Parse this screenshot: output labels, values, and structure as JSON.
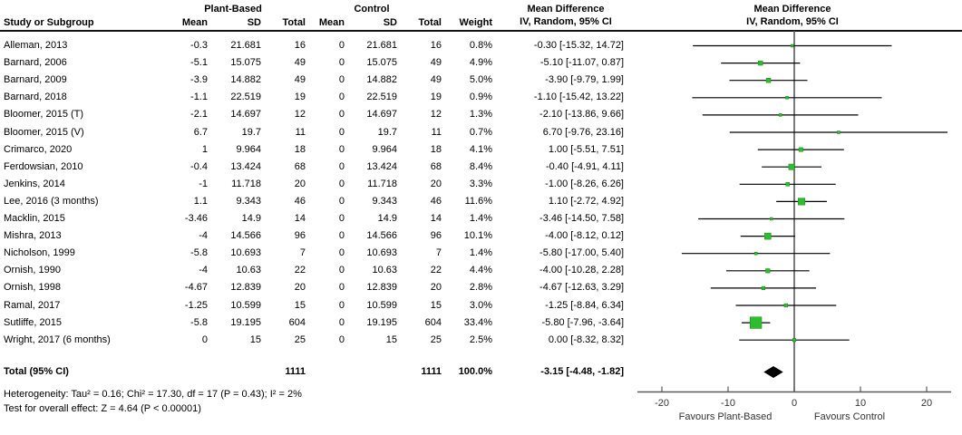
{
  "header": {
    "group1": "Plant-Based",
    "group2": "Control",
    "col_study": "Study or Subgroup",
    "col_mean": "Mean",
    "col_sd": "SD",
    "col_total": "Total",
    "col_weight": "Weight",
    "md_title": "Mean Difference",
    "md_subtitle": "IV, Random, 95% CI"
  },
  "colors": {
    "marker_green": "#2cbe2c",
    "marker_border": "#168a16",
    "ci_line": "#000000",
    "axis_gray": "#595959",
    "diamond": "#000000"
  },
  "chart_data": {
    "type": "forest",
    "title": "Mean Difference, IV, Random, 95% CI",
    "studies": [
      {
        "study": "Alleman, 2013",
        "pb_mean": "-0.3",
        "pb_sd": "21.681",
        "pb_total": "16",
        "c_mean": "0",
        "c_sd": "21.681",
        "c_total": "16",
        "weight": "0.8%",
        "md_label": "-0.30 [-15.32, 14.72]",
        "md": -0.3,
        "ci_low": -15.32,
        "ci_high": 14.72,
        "weight_pct": 0.8
      },
      {
        "study": "Barnard, 2006",
        "pb_mean": "-5.1",
        "pb_sd": "15.075",
        "pb_total": "49",
        "c_mean": "0",
        "c_sd": "15.075",
        "c_total": "49",
        "weight": "4.9%",
        "md_label": "-5.10 [-11.07, 0.87]",
        "md": -5.1,
        "ci_low": -11.07,
        "ci_high": 0.87,
        "weight_pct": 4.9
      },
      {
        "study": "Barnard, 2009",
        "pb_mean": "-3.9",
        "pb_sd": "14.882",
        "pb_total": "49",
        "c_mean": "0",
        "c_sd": "14.882",
        "c_total": "49",
        "weight": "5.0%",
        "md_label": "-3.90 [-9.79, 1.99]",
        "md": -3.9,
        "ci_low": -9.79,
        "ci_high": 1.99,
        "weight_pct": 5.0
      },
      {
        "study": "Barnard, 2018",
        "pb_mean": "-1.1",
        "pb_sd": "22.519",
        "pb_total": "19",
        "c_mean": "0",
        "c_sd": "22.519",
        "c_total": "19",
        "weight": "0.9%",
        "md_label": "-1.10 [-15.42, 13.22]",
        "md": -1.1,
        "ci_low": -15.42,
        "ci_high": 13.22,
        "weight_pct": 0.9
      },
      {
        "study": "Bloomer, 2015 (T)",
        "pb_mean": "-2.1",
        "pb_sd": "14.697",
        "pb_total": "12",
        "c_mean": "0",
        "c_sd": "14.697",
        "c_total": "12",
        "weight": "1.3%",
        "md_label": "-2.10 [-13.86, 9.66]",
        "md": -2.1,
        "ci_low": -13.86,
        "ci_high": 9.66,
        "weight_pct": 1.3
      },
      {
        "study": "Bloomer, 2015 (V)",
        "pb_mean": "6.7",
        "pb_sd": "19.7",
        "pb_total": "11",
        "c_mean": "0",
        "c_sd": "19.7",
        "c_total": "11",
        "weight": "0.7%",
        "md_label": "6.70 [-9.76, 23.16]",
        "md": 6.7,
        "ci_low": -9.76,
        "ci_high": 23.16,
        "weight_pct": 0.7
      },
      {
        "study": "Crimarco, 2020",
        "pb_mean": "1",
        "pb_sd": "9.964",
        "pb_total": "18",
        "c_mean": "0",
        "c_sd": "9.964",
        "c_total": "18",
        "weight": "4.1%",
        "md_label": "1.00 [-5.51, 7.51]",
        "md": 1.0,
        "ci_low": -5.51,
        "ci_high": 7.51,
        "weight_pct": 4.1
      },
      {
        "study": "Ferdowsian, 2010",
        "pb_mean": "-0.4",
        "pb_sd": "13.424",
        "pb_total": "68",
        "c_mean": "0",
        "c_sd": "13.424",
        "c_total": "68",
        "weight": "8.4%",
        "md_label": "-0.40 [-4.91, 4.11]",
        "md": -0.4,
        "ci_low": -4.91,
        "ci_high": 4.11,
        "weight_pct": 8.4
      },
      {
        "study": "Jenkins, 2014",
        "pb_mean": "-1",
        "pb_sd": "11.718",
        "pb_total": "20",
        "c_mean": "0",
        "c_sd": "11.718",
        "c_total": "20",
        "weight": "3.3%",
        "md_label": "-1.00 [-8.26, 6.26]",
        "md": -1.0,
        "ci_low": -8.26,
        "ci_high": 6.26,
        "weight_pct": 3.3
      },
      {
        "study": "Lee, 2016 (3 months)",
        "pb_mean": "1.1",
        "pb_sd": "9.343",
        "pb_total": "46",
        "c_mean": "0",
        "c_sd": "9.343",
        "c_total": "46",
        "weight": "11.6%",
        "md_label": "1.10 [-2.72, 4.92]",
        "md": 1.1,
        "ci_low": -2.72,
        "ci_high": 4.92,
        "weight_pct": 11.6
      },
      {
        "study": "Macklin, 2015",
        "pb_mean": "-3.46",
        "pb_sd": "14.9",
        "pb_total": "14",
        "c_mean": "0",
        "c_sd": "14.9",
        "c_total": "14",
        "weight": "1.4%",
        "md_label": "-3.46 [-14.50, 7.58]",
        "md": -3.46,
        "ci_low": -14.5,
        "ci_high": 7.58,
        "weight_pct": 1.4
      },
      {
        "study": "Mishra, 2013",
        "pb_mean": "-4",
        "pb_sd": "14.566",
        "pb_total": "96",
        "c_mean": "0",
        "c_sd": "14.566",
        "c_total": "96",
        "weight": "10.1%",
        "md_label": "-4.00 [-8.12, 0.12]",
        "md": -4.0,
        "ci_low": -8.12,
        "ci_high": 0.12,
        "weight_pct": 10.1
      },
      {
        "study": "Nicholson, 1999",
        "pb_mean": "-5.8",
        "pb_sd": "10.693",
        "pb_total": "7",
        "c_mean": "0",
        "c_sd": "10.693",
        "c_total": "7",
        "weight": "1.4%",
        "md_label": "-5.80 [-17.00, 5.40]",
        "md": -5.8,
        "ci_low": -17.0,
        "ci_high": 5.4,
        "weight_pct": 1.4
      },
      {
        "study": "Ornish, 1990",
        "pb_mean": "-4",
        "pb_sd": "10.63",
        "pb_total": "22",
        "c_mean": "0",
        "c_sd": "10.63",
        "c_total": "22",
        "weight": "4.4%",
        "md_label": "-4.00 [-10.28, 2.28]",
        "md": -4.0,
        "ci_low": -10.28,
        "ci_high": 2.28,
        "weight_pct": 4.4
      },
      {
        "study": "Ornish, 1998",
        "pb_mean": "-4.67",
        "pb_sd": "12.839",
        "pb_total": "20",
        "c_mean": "0",
        "c_sd": "12.839",
        "c_total": "20",
        "weight": "2.8%",
        "md_label": "-4.67 [-12.63, 3.29]",
        "md": -4.67,
        "ci_low": -12.63,
        "ci_high": 3.29,
        "weight_pct": 2.8
      },
      {
        "study": "Ramal, 2017",
        "pb_mean": "-1.25",
        "pb_sd": "10.599",
        "pb_total": "15",
        "c_mean": "0",
        "c_sd": "10.599",
        "c_total": "15",
        "weight": "3.0%",
        "md_label": "-1.25 [-8.84, 6.34]",
        "md": -1.25,
        "ci_low": -8.84,
        "ci_high": 6.34,
        "weight_pct": 3.0
      },
      {
        "study": "Sutliffe, 2015",
        "pb_mean": "-5.8",
        "pb_sd": "19.195",
        "pb_total": "604",
        "c_mean": "0",
        "c_sd": "19.195",
        "c_total": "604",
        "weight": "33.4%",
        "md_label": "-5.80 [-7.96, -3.64]",
        "md": -5.8,
        "ci_low": -7.96,
        "ci_high": -3.64,
        "weight_pct": 33.4
      },
      {
        "study": "Wright, 2017 (6 months)",
        "pb_mean": "0",
        "pb_sd": "15",
        "pb_total": "25",
        "c_mean": "0",
        "c_sd": "15",
        "c_total": "25",
        "weight": "2.5%",
        "md_label": "0.00 [-8.32, 8.32]",
        "md": 0.0,
        "ci_low": -8.32,
        "ci_high": 8.32,
        "weight_pct": 2.5
      }
    ],
    "total": {
      "label": "Total (95% CI)",
      "pb_total": "1111",
      "c_total": "1111",
      "weight": "100.0%",
      "md_label": "-3.15 [-4.48, -1.82]",
      "md": -3.15,
      "ci_low": -4.48,
      "ci_high": -1.82
    },
    "heterogeneity": "Heterogeneity: Tau² = 0.16; Chi² = 17.30, df = 17 (P = 0.43); I² = 2%",
    "overall_effect": "Test for overall effect: Z = 4.64 (P < 0.00001)",
    "axis": {
      "ticks": [
        -20,
        -10,
        0,
        10,
        20
      ],
      "xlim": [
        -23.7,
        23.7
      ],
      "favours_left": "Favours Plant-Based",
      "favours_right": "Favours Control"
    }
  }
}
